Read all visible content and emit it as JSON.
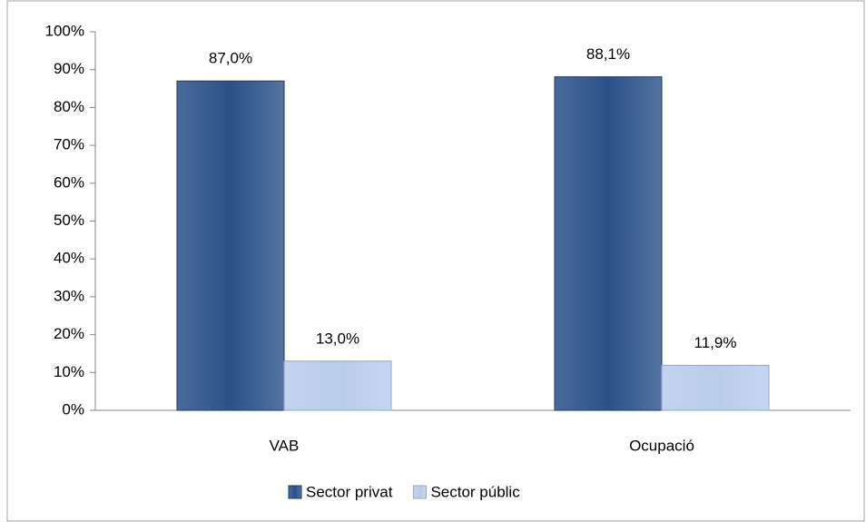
{
  "chart_data": {
    "type": "bar",
    "categories": [
      "VAB",
      "Ocupació"
    ],
    "series": [
      {
        "name": "Sector privat",
        "color": "#2a5188",
        "values": [
          87.0,
          88.1
        ],
        "value_labels": [
          "87,0%",
          "88,1%"
        ]
      },
      {
        "name": "Sector públic",
        "color": "#b9cce8",
        "values": [
          13.0,
          11.9
        ],
        "value_labels": [
          "13,0%",
          "11,9%"
        ]
      }
    ],
    "ylim": [
      0,
      100
    ],
    "yticks": [
      {
        "value": 0,
        "label": "0%"
      },
      {
        "value": 10,
        "label": "10%"
      },
      {
        "value": 20,
        "label": "20%"
      },
      {
        "value": 30,
        "label": "30%"
      },
      {
        "value": 40,
        "label": "40%"
      },
      {
        "value": 50,
        "label": "50%"
      },
      {
        "value": 60,
        "label": "60%"
      },
      {
        "value": 70,
        "label": "70%"
      },
      {
        "value": 80,
        "label": "80%"
      },
      {
        "value": 90,
        "label": "90%"
      },
      {
        "value": 100,
        "label": "100%"
      }
    ],
    "grid": false,
    "legend": "bottom"
  }
}
